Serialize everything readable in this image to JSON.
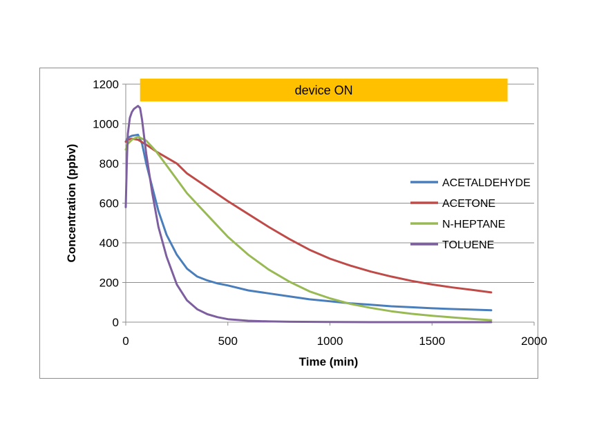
{
  "chart_data": {
    "type": "line",
    "title": "",
    "xlabel": "Time (min)",
    "ylabel": "Concentration (ppbv)",
    "xlim": [
      0,
      2000
    ],
    "ylim": [
      0,
      1200
    ],
    "xticks": [
      0,
      500,
      1000,
      1500,
      2000
    ],
    "yticks": [
      0,
      200,
      400,
      600,
      800,
      1000,
      1200
    ],
    "grid": "horizontal",
    "legend_position": "right",
    "annotation": {
      "text": "device ON",
      "x_start": 70,
      "x_end": 1870,
      "color": "#ffc000"
    },
    "series": [
      {
        "name": "ACETALDEHYDE",
        "color": "#4a7ebb",
        "x": [
          0,
          10,
          30,
          60,
          80,
          100,
          130,
          160,
          200,
          250,
          300,
          350,
          400,
          450,
          500,
          600,
          700,
          800,
          900,
          1000,
          1100,
          1200,
          1300,
          1400,
          1500,
          1600,
          1700,
          1790
        ],
        "y": [
          910,
          930,
          940,
          945,
          900,
          800,
          680,
          560,
          440,
          340,
          270,
          230,
          210,
          195,
          185,
          160,
          145,
          130,
          115,
          105,
          95,
          88,
          80,
          75,
          70,
          66,
          63,
          60
        ]
      },
      {
        "name": "ACETONE",
        "color": "#be4b48",
        "x": [
          0,
          10,
          30,
          60,
          100,
          150,
          200,
          250,
          300,
          400,
          500,
          600,
          700,
          800,
          900,
          1000,
          1100,
          1200,
          1300,
          1400,
          1500,
          1600,
          1700,
          1790
        ],
        "y": [
          910,
          920,
          925,
          920,
          895,
          860,
          830,
          800,
          750,
          680,
          610,
          545,
          480,
          420,
          365,
          320,
          285,
          255,
          230,
          208,
          190,
          175,
          162,
          150
        ]
      },
      {
        "name": "N-HEPTANE",
        "color": "#98b954",
        "x": [
          0,
          10,
          30,
          60,
          100,
          150,
          200,
          250,
          300,
          400,
          500,
          600,
          700,
          800,
          900,
          1000,
          1100,
          1200,
          1300,
          1400,
          1500,
          1600,
          1700,
          1790
        ],
        "y": [
          870,
          900,
          920,
          935,
          915,
          860,
          790,
          720,
          650,
          540,
          430,
          340,
          265,
          205,
          155,
          120,
          92,
          72,
          55,
          42,
          32,
          24,
          16,
          10
        ]
      },
      {
        "name": "TOLUENE",
        "color": "#7d5fa0",
        "x": [
          0,
          5,
          10,
          20,
          30,
          40,
          60,
          70,
          80,
          100,
          130,
          160,
          200,
          250,
          300,
          350,
          400,
          450,
          500,
          600,
          700,
          800,
          1000,
          1200,
          1500,
          1790
        ],
        "y": [
          580,
          800,
          950,
          1030,
          1060,
          1075,
          1090,
          1080,
          1020,
          850,
          650,
          480,
          330,
          190,
          110,
          65,
          40,
          25,
          15,
          7,
          4,
          2,
          1,
          0,
          0,
          0
        ]
      }
    ]
  }
}
